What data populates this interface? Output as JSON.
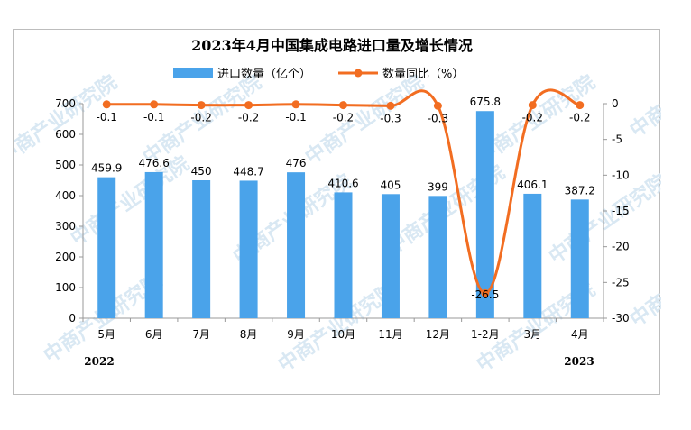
{
  "chart_data": {
    "type": "bar+line",
    "title": "2023年4月中国集成电路进口量及增长情况",
    "categories": [
      "5月",
      "6月",
      "7月",
      "8月",
      "9月",
      "10月",
      "11月",
      "12月",
      "1-2月",
      "3月",
      "4月"
    ],
    "year_labels": [
      "2022",
      "2023"
    ],
    "series": [
      {
        "name": "进口数量（亿个）",
        "type": "bar",
        "axis": "left",
        "color": "#4aa3ea",
        "values": [
          459.9,
          476.6,
          450,
          448.7,
          476,
          410.6,
          405,
          399,
          675.8,
          406.1,
          387.2
        ]
      },
      {
        "name": "数量同比（%）",
        "type": "line",
        "axis": "right",
        "color": "#f26d21",
        "values": [
          -0.1,
          -0.1,
          -0.2,
          -0.2,
          -0.1,
          -0.2,
          -0.3,
          -0.3,
          -26.5,
          -0.2,
          -0.2
        ]
      }
    ],
    "yleft": {
      "min": 0,
      "max": 700,
      "step": 100
    },
    "yright": {
      "min": -30,
      "max": 0,
      "step": 5
    },
    "legend_position": "top"
  },
  "watermark": "中商产业研究院"
}
